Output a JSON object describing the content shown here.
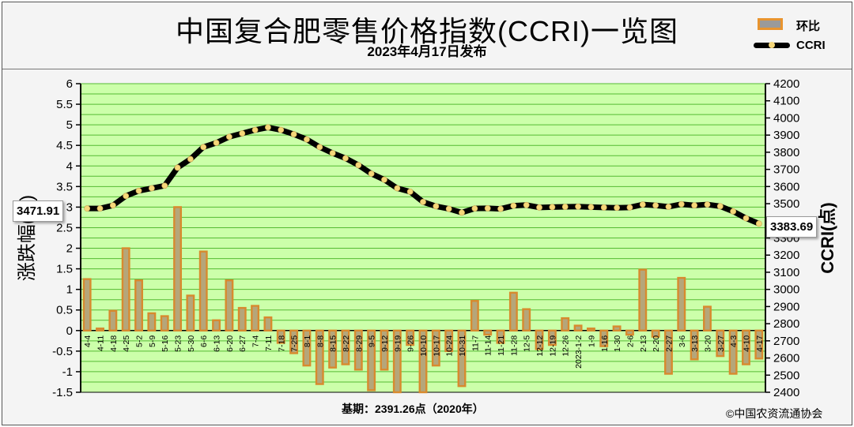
{
  "header": {
    "title": "中国复合肥零售价格指数(CCRI)一览图",
    "subtitle": "2023年4月17日发布"
  },
  "legend": {
    "bar_label": "环比",
    "line_label": "CCRI"
  },
  "callouts": {
    "start": "3471.91",
    "end": "3383.69"
  },
  "footer": {
    "base": "基期：2391.26点（2020年）",
    "copyright": "©中国农资流通协会"
  },
  "colors": {
    "plot_bg": "#ccffaa",
    "grid": "#55bb33",
    "bar_fill": "#b5a67a",
    "bar_edge": "#d88a2e",
    "line": "#000000",
    "dot": "#f5d77a"
  },
  "chart_data": {
    "type": "bar",
    "title": "中国复合肥零售价格指数(CCRI)一览图",
    "ylabel": "涨跌幅(%)",
    "y2label": "CCRI(点)",
    "ylim": [
      -1.5,
      6
    ],
    "y2lim": [
      2400,
      4200
    ],
    "yticks": [
      "-1.5",
      "-1",
      "-0.5",
      "0",
      "0.5",
      "1",
      "1.5",
      "2",
      "2.5",
      "3",
      "3.5",
      "4",
      "4.5",
      "5",
      "5.5",
      "6"
    ],
    "y2ticks": [
      "2400",
      "2500",
      "2600",
      "2700",
      "2800",
      "2900",
      "3000",
      "3100",
      "3200",
      "3300",
      "3400",
      "3500",
      "3600",
      "3700",
      "3800",
      "3900",
      "4000",
      "4100",
      "4200"
    ],
    "grid": true,
    "legend_position": "top-right",
    "categories": [
      "4-4",
      "4-11",
      "4-18",
      "4-25",
      "5-2",
      "5-9",
      "5-16",
      "5-23",
      "5-30",
      "6-6",
      "6-13",
      "6-20",
      "6-27",
      "7-4",
      "7-11",
      "7-18",
      "7-25",
      "8-1",
      "8-8",
      "8-15",
      "8-22",
      "8-29",
      "9-5",
      "9-12",
      "9-19",
      "9-26",
      "10-10",
      "10-17",
      "10-24",
      "10-31",
      "11-7",
      "11-14",
      "11-21",
      "11-28",
      "12-5",
      "12-12",
      "12-19",
      "12-26",
      "2023-1-2",
      "1-9",
      "1-16",
      "1-30",
      "2-6",
      "2-13",
      "2-20",
      "2-27",
      "3-6",
      "3-13",
      "3-20",
      "3-27",
      "4-3",
      "4-10",
      "4-17"
    ],
    "series": [
      {
        "name": "环比",
        "type": "bar",
        "values": [
          1.25,
          0.05,
          0.48,
          2.0,
          1.22,
          0.42,
          0.35,
          3.0,
          0.85,
          1.92,
          0.25,
          1.22,
          0.55,
          0.6,
          0.32,
          -0.3,
          -0.55,
          -0.85,
          -1.3,
          -0.9,
          -0.82,
          -0.95,
          -1.45,
          -0.95,
          -1.5,
          -0.35,
          -1.5,
          -0.85,
          -0.5,
          -1.35,
          0.72,
          -0.1,
          -0.3,
          0.92,
          0.52,
          -0.45,
          -0.35,
          0.3,
          0.12,
          0.05,
          -0.38,
          0.1,
          -0.1,
          1.48,
          -0.15,
          -1.05,
          1.28,
          -0.7,
          0.58,
          -0.62,
          -1.05,
          -0.82,
          -0.68
        ]
      },
      {
        "name": "CCRI",
        "type": "line",
        "values": [
          3471.91,
          3472,
          3490,
          3545,
          3575,
          3590,
          3605,
          3710,
          3760,
          3830,
          3855,
          3890,
          3910,
          3930,
          3945,
          3930,
          3905,
          3875,
          3830,
          3795,
          3765,
          3725,
          3675,
          3640,
          3590,
          3570,
          3510,
          3485,
          3470,
          3448,
          3472,
          3473,
          3470,
          3488,
          3492,
          3478,
          3480,
          3482,
          3483,
          3480,
          3478,
          3476,
          3478,
          3495,
          3490,
          3482,
          3497,
          3490,
          3495,
          3485,
          3455,
          3415,
          3383.69
        ]
      }
    ]
  }
}
